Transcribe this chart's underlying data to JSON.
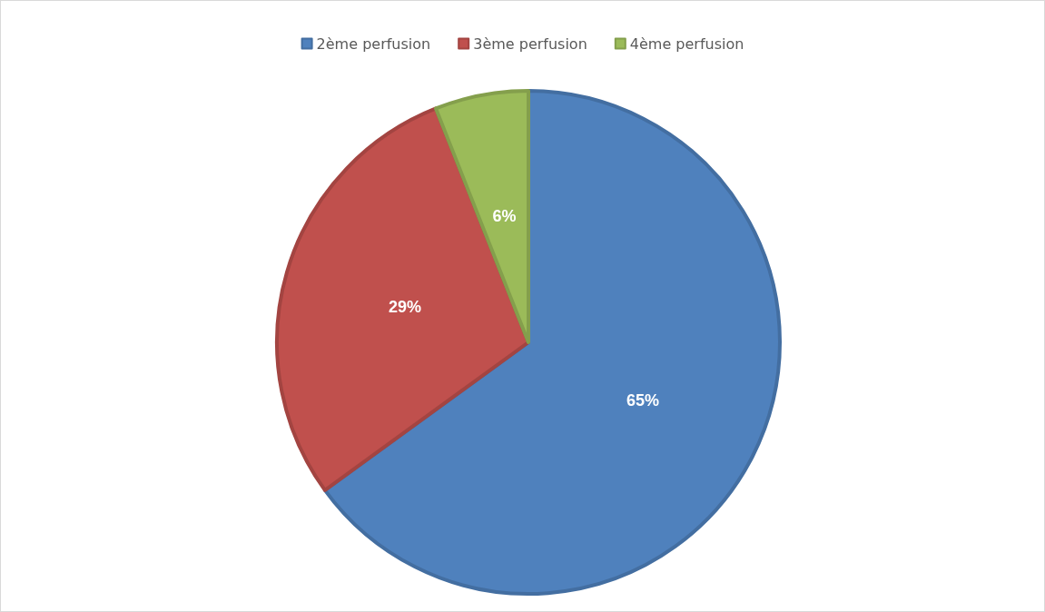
{
  "chart_data": {
    "type": "pie",
    "categories": [
      "2ème perfusion",
      "3ème perfusion",
      "4ème perfusion"
    ],
    "values": [
      65,
      29,
      6
    ],
    "value_labels": [
      "65%",
      "29%",
      "6%"
    ],
    "colors": [
      "#4f81bd",
      "#c0504d",
      "#9bbb59"
    ],
    "legend": "top"
  }
}
